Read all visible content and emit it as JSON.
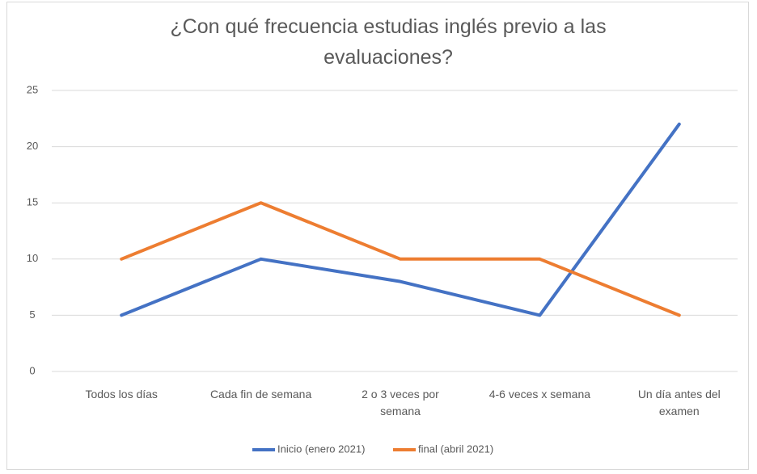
{
  "chart_data": {
    "type": "line",
    "title": "¿Con qué frecuencia estudias inglés previo a las evaluaciones?",
    "categories": [
      "Todos los días",
      "Cada fin de semana",
      "2 o 3 veces por semana",
      "4-6 veces x semana",
      "Un día antes del examen"
    ],
    "series": [
      {
        "name": "Inicio (enero 2021)",
        "color": "#4472c4",
        "values": [
          5,
          10,
          8,
          5,
          22
        ]
      },
      {
        "name": "final (abril 2021)",
        "color": "#ed7d31",
        "values": [
          10,
          15,
          10,
          10,
          5
        ]
      }
    ],
    "ylim": [
      0,
      25
    ],
    "yticks": [
      0,
      5,
      10,
      15,
      20,
      25
    ],
    "grid": true,
    "legend": "bottom"
  }
}
